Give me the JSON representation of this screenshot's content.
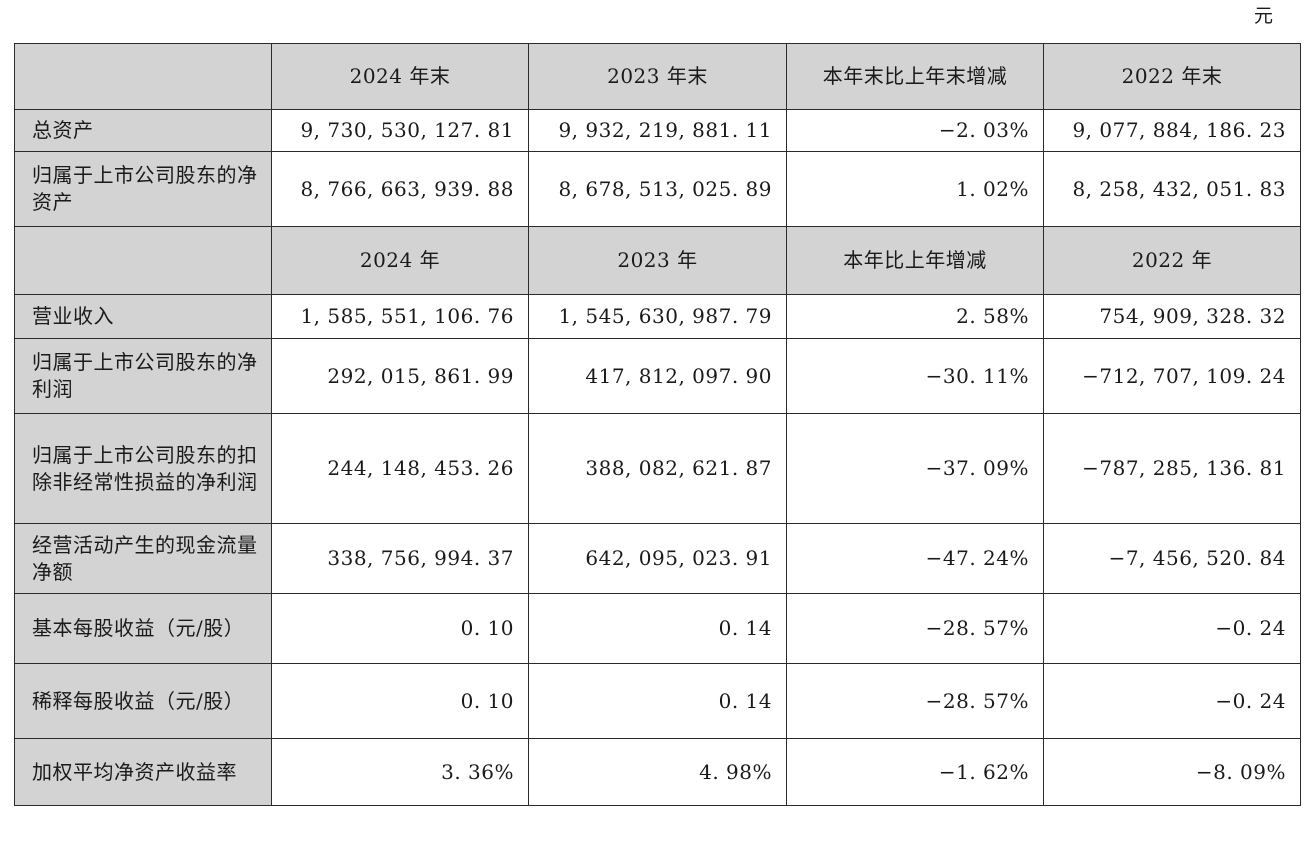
{
  "unit": "元",
  "header_end": [
    "2024 年末",
    "2023 年末",
    "本年末比上年末增减",
    "2022 年末"
  ],
  "header_year": [
    "2024 年",
    "2023 年",
    "本年比上年增减",
    "2022 年"
  ],
  "rows": [
    {
      "label": "总资产",
      "values": [
        "9, 730, 530, 127. 81",
        "9, 932, 219, 881. 11",
        "−2. 03%",
        "9, 077, 884, 186. 23"
      ]
    },
    {
      "label": "归属于上市公司股东的净资产",
      "values": [
        "8, 766, 663, 939. 88",
        "8, 678, 513, 025. 89",
        "1. 02%",
        "8, 258, 432, 051. 83"
      ]
    },
    {
      "label": "营业收入",
      "values": [
        "1, 585, 551, 106. 76",
        "1, 545, 630, 987. 79",
        "2. 58%",
        "754, 909, 328. 32"
      ]
    },
    {
      "label": "归属于上市公司股东的净利润",
      "values": [
        "292, 015, 861. 99",
        "417, 812, 097. 90",
        "−30. 11%",
        "−712, 707, 109. 24"
      ]
    },
    {
      "label": "归属于上市公司股东的扣除非经常性损益的净利润",
      "values": [
        "244, 148, 453. 26",
        "388, 082, 621. 87",
        "−37. 09%",
        "−787, 285, 136. 81"
      ]
    },
    {
      "label": "经营活动产生的现金流量净额",
      "values": [
        "338, 756, 994. 37",
        "642, 095, 023. 91",
        "−47. 24%",
        "−7, 456, 520. 84"
      ]
    },
    {
      "label": "基本每股收益（元/股）",
      "values": [
        "0. 10",
        "0. 14",
        "−28. 57%",
        "−0. 24"
      ]
    },
    {
      "label": "稀释每股收益（元/股）",
      "values": [
        "0. 10",
        "0. 14",
        "−28. 57%",
        "−0. 24"
      ]
    },
    {
      "label": "加权平均净资产收益率",
      "values": [
        "3. 36%",
        "4. 98%",
        "−1. 62%",
        "−8. 09%"
      ]
    }
  ]
}
